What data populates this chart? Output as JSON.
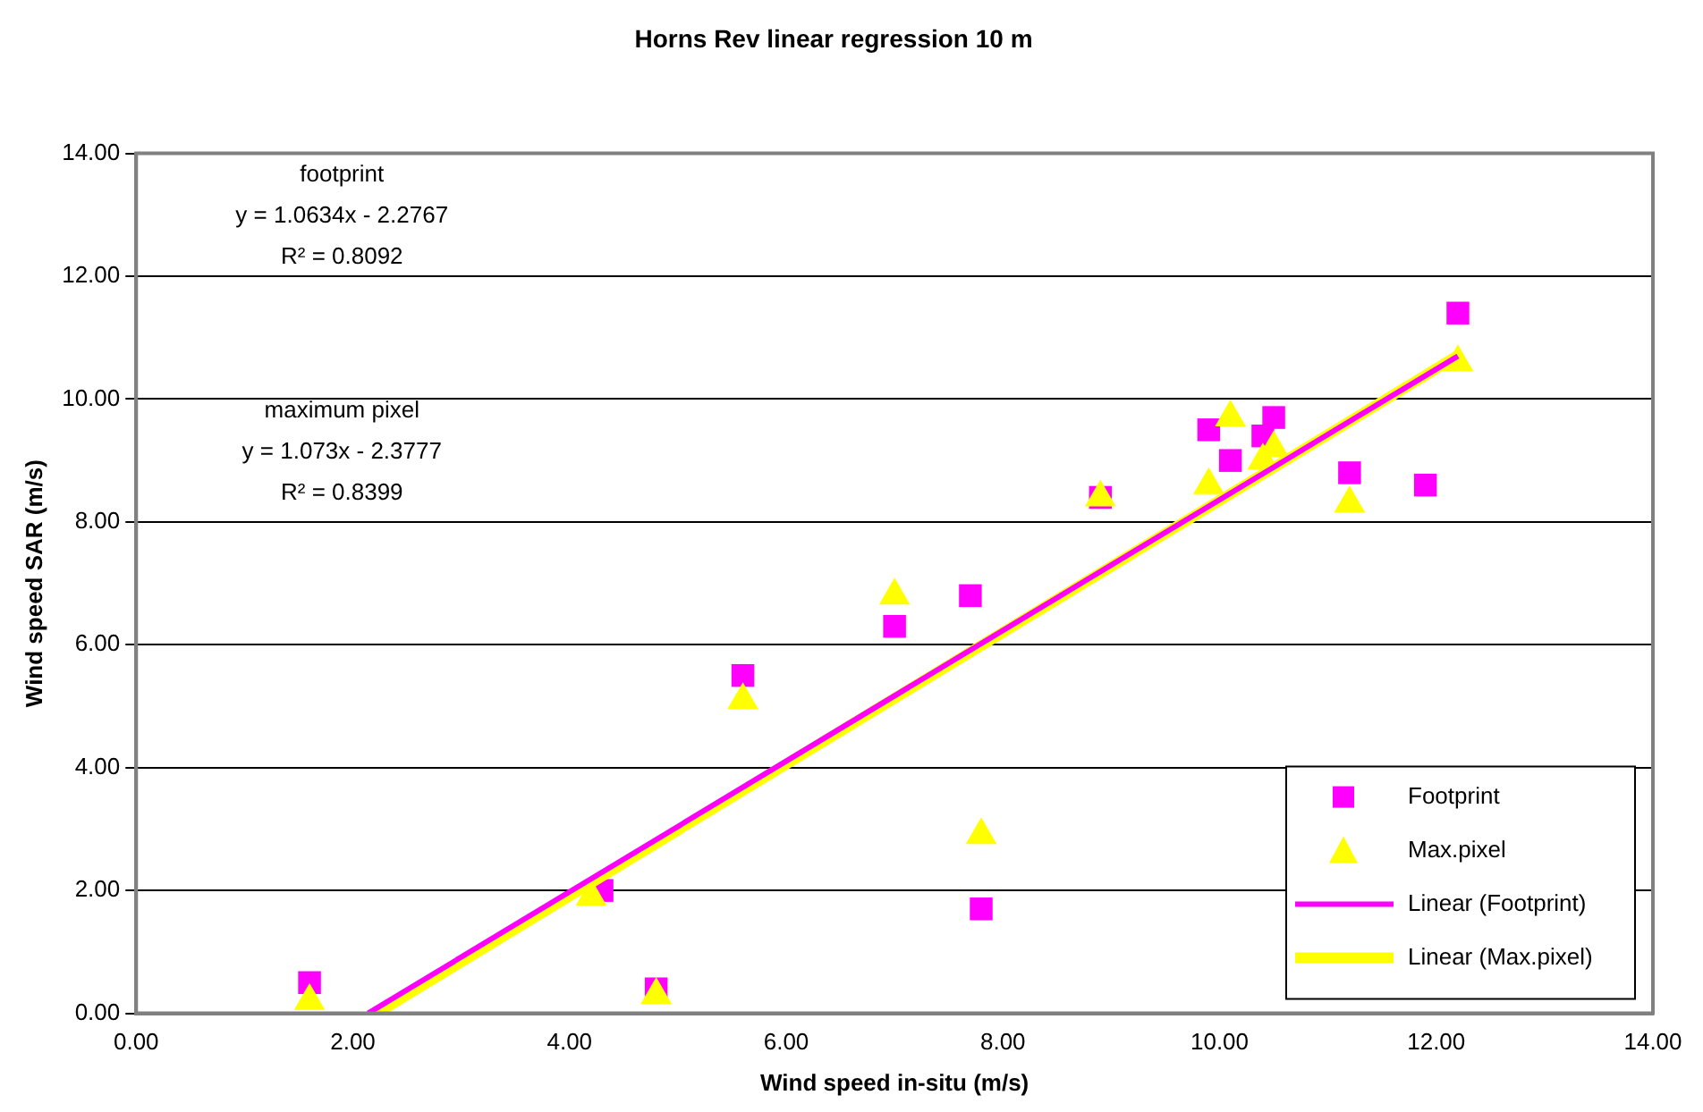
{
  "chart_data": {
    "type": "scatter",
    "title": "Horns Rev linear regression 10 m",
    "xlabel": "Wind speed in-situ (m/s)",
    "ylabel": "Wind speed SAR (m/s)",
    "xlim": [
      0,
      14
    ],
    "ylim": [
      0,
      14
    ],
    "xticks": [
      {
        "value": 0,
        "label": "0.00"
      },
      {
        "value": 2,
        "label": "2.00"
      },
      {
        "value": 4,
        "label": "4.00"
      },
      {
        "value": 6,
        "label": "6.00"
      },
      {
        "value": 8,
        "label": "8.00"
      },
      {
        "value": 10,
        "label": "10.00"
      },
      {
        "value": 12,
        "label": "12.00"
      },
      {
        "value": 14,
        "label": "14.00"
      }
    ],
    "yticks": [
      {
        "value": 0,
        "label": "0.00"
      },
      {
        "value": 2,
        "label": "2.00"
      },
      {
        "value": 4,
        "label": "4.00"
      },
      {
        "value": 6,
        "label": "6.00"
      },
      {
        "value": 8,
        "label": "8.00"
      },
      {
        "value": 10,
        "label": "10.00"
      },
      {
        "value": 12,
        "label": "12.00"
      },
      {
        "value": 14,
        "label": "14.00"
      }
    ],
    "grid": "y",
    "legend": "bottom right",
    "series": [
      {
        "name": "Footprint",
        "type": "scatter",
        "marker": "square",
        "color": "#ff00ff",
        "x": [
          1.6,
          4.3,
          4.8,
          5.6,
          7.0,
          7.7,
          7.8,
          8.9,
          9.9,
          10.1,
          10.4,
          10.5,
          11.2,
          11.9,
          12.2
        ],
        "values": [
          0.5,
          2.0,
          0.4,
          5.5,
          6.3,
          6.8,
          1.7,
          8.4,
          9.5,
          9.0,
          9.4,
          9.7,
          8.8,
          8.6,
          11.4
        ]
      },
      {
        "name": "Max.pixel",
        "type": "scatter",
        "marker": "triangle",
        "color": "#ffff00",
        "x": [
          1.6,
          4.2,
          4.8,
          5.6,
          7.0,
          7.8,
          8.9,
          9.9,
          10.1,
          10.4,
          10.5,
          11.2,
          12.2
        ],
        "values": [
          0.2,
          1.9,
          0.3,
          5.1,
          6.8,
          2.9,
          8.4,
          8.6,
          9.7,
          9.0,
          9.2,
          8.3,
          10.6
        ]
      },
      {
        "name": "Linear (Footprint)",
        "type": "line",
        "marker": "none",
        "color": "#ff00ff",
        "x": [
          2.14,
          12.2
        ],
        "values": [
          0,
          10.7
        ]
      },
      {
        "name": "Linear (Max.pixel)",
        "type": "line",
        "marker": "none",
        "color": "#ffff00",
        "x": [
          2.22,
          12.2
        ],
        "values": [
          0,
          10.71
        ]
      }
    ],
    "annotations": [
      "footprint",
      "y = 1.0634x - 2.2767",
      "R² = 0.8092",
      "maximum pixel",
      "y = 1.073x - 2.3777",
      "R² = 0.8399"
    ]
  }
}
